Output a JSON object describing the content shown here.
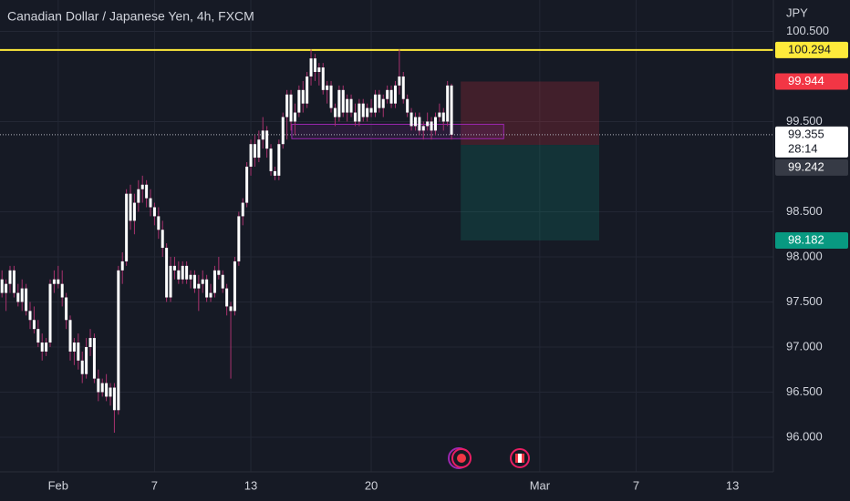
{
  "chart_data": {
    "type": "candlestick",
    "title": "Canadian Dollar / Japanese Yen, 4h, FXCM",
    "currency": "JPY",
    "up_color": "#ffffff",
    "down_color": "#ffffff",
    "wick_color": "#a8326e",
    "grid": true,
    "xlim": [
      -0.5,
      192.2
    ],
    "ylim": [
      95.616,
      100.848
    ],
    "xticks": [
      {
        "value": 14,
        "label": "Feb"
      },
      {
        "value": 38,
        "label": "7"
      },
      {
        "value": 62,
        "label": "13"
      },
      {
        "value": 92,
        "label": "20"
      },
      {
        "value": 134,
        "label": "Mar"
      },
      {
        "value": 158,
        "label": "7"
      },
      {
        "value": 182,
        "label": "13"
      }
    ],
    "yticks": [
      {
        "value": 96,
        "label": "96.000"
      },
      {
        "value": 96.5,
        "label": "96.500"
      },
      {
        "value": 97,
        "label": "97.000"
      },
      {
        "value": 97.5,
        "label": "97.500"
      },
      {
        "value": 98,
        "label": "98.000"
      },
      {
        "value": 98.5,
        "label": "98.500"
      },
      {
        "value": 99.5,
        "label": "99.500"
      },
      {
        "value": 100.5,
        "label": "100.500"
      }
    ],
    "ohlc": [
      [
        97.75,
        97.85,
        97.55,
        97.6
      ],
      [
        97.6,
        97.75,
        97.4,
        97.7
      ],
      [
        97.7,
        97.9,
        97.6,
        97.85
      ],
      [
        97.85,
        97.9,
        97.55,
        97.6
      ],
      [
        97.6,
        97.7,
        97.45,
        97.5
      ],
      [
        97.5,
        97.75,
        97.4,
        97.65
      ],
      [
        97.65,
        97.7,
        97.35,
        97.4
      ],
      [
        97.4,
        97.5,
        97.2,
        97.3
      ],
      [
        97.3,
        97.45,
        97.15,
        97.2
      ],
      [
        97.2,
        97.3,
        97.0,
        97.05
      ],
      [
        97.05,
        97.15,
        96.85,
        96.95
      ],
      [
        96.95,
        97.1,
        96.9,
        97.05
      ],
      [
        97.05,
        97.75,
        97.0,
        97.7
      ],
      [
        97.7,
        97.85,
        97.6,
        97.75
      ],
      [
        97.75,
        97.9,
        97.65,
        97.7
      ],
      [
        97.7,
        97.85,
        97.45,
        97.55
      ],
      [
        97.55,
        97.6,
        97.2,
        97.3
      ],
      [
        97.3,
        97.35,
        96.85,
        96.95
      ],
      [
        96.95,
        97.1,
        96.8,
        97.05
      ],
      [
        97.05,
        97.15,
        96.75,
        96.85
      ],
      [
        96.85,
        96.95,
        96.6,
        96.7
      ],
      [
        96.7,
        97.1,
        96.65,
        97.0
      ],
      [
        97.0,
        97.2,
        96.9,
        97.1
      ],
      [
        97.1,
        97.15,
        96.6,
        96.65
      ],
      [
        96.65,
        96.75,
        96.4,
        96.5
      ],
      [
        96.5,
        96.65,
        96.45,
        96.6
      ],
      [
        96.6,
        96.7,
        96.4,
        96.45
      ],
      [
        96.45,
        96.6,
        96.35,
        96.55
      ],
      [
        96.55,
        96.6,
        96.05,
        96.3
      ],
      [
        96.3,
        97.9,
        96.25,
        97.85
      ],
      [
        97.85,
        98.05,
        97.7,
        97.95
      ],
      [
        97.95,
        98.75,
        97.9,
        98.7
      ],
      [
        98.7,
        98.8,
        98.3,
        98.4
      ],
      [
        98.4,
        98.7,
        98.25,
        98.6
      ],
      [
        98.6,
        98.85,
        98.5,
        98.75
      ],
      [
        98.75,
        98.9,
        98.6,
        98.8
      ],
      [
        98.8,
        98.85,
        98.55,
        98.65
      ],
      [
        98.65,
        98.75,
        98.45,
        98.55
      ],
      [
        98.55,
        98.6,
        98.35,
        98.45
      ],
      [
        98.45,
        98.55,
        98.2,
        98.3
      ],
      [
        98.3,
        98.4,
        98.0,
        98.1
      ],
      [
        98.1,
        98.15,
        97.5,
        97.55
      ],
      [
        97.55,
        98.0,
        97.5,
        97.9
      ],
      [
        97.9,
        98.0,
        97.75,
        97.85
      ],
      [
        97.85,
        97.95,
        97.7,
        97.75
      ],
      [
        97.75,
        97.95,
        97.7,
        97.9
      ],
      [
        97.9,
        97.95,
        97.7,
        97.75
      ],
      [
        97.75,
        97.85,
        97.65,
        97.8
      ],
      [
        97.8,
        97.85,
        97.6,
        97.65
      ],
      [
        97.65,
        97.8,
        97.4,
        97.7
      ],
      [
        97.7,
        97.85,
        97.6,
        97.75
      ],
      [
        97.75,
        97.8,
        97.5,
        97.55
      ],
      [
        97.55,
        97.7,
        97.5,
        97.6
      ],
      [
        97.6,
        97.9,
        97.55,
        97.85
      ],
      [
        97.85,
        98.0,
        97.75,
        97.8
      ],
      [
        97.8,
        97.85,
        97.6,
        97.65
      ],
      [
        97.65,
        97.7,
        97.35,
        97.45
      ],
      [
        97.45,
        97.5,
        96.65,
        97.4
      ],
      [
        97.4,
        98.0,
        97.35,
        97.95
      ],
      [
        97.95,
        98.5,
        97.9,
        98.45
      ],
      [
        98.45,
        98.65,
        98.35,
        98.6
      ],
      [
        98.6,
        99.05,
        98.55,
        99.0
      ],
      [
        99.0,
        99.3,
        98.9,
        99.25
      ],
      [
        99.25,
        99.35,
        99.0,
        99.1
      ],
      [
        99.1,
        99.4,
        99.05,
        99.3
      ],
      [
        99.3,
        99.55,
        99.2,
        99.4
      ],
      [
        99.4,
        99.45,
        99.1,
        99.2
      ],
      [
        99.2,
        99.25,
        98.9,
        98.95
      ],
      [
        98.95,
        99.0,
        98.85,
        98.9
      ],
      [
        98.9,
        99.3,
        98.85,
        99.25
      ],
      [
        99.25,
        99.6,
        99.2,
        99.55
      ],
      [
        99.55,
        99.85,
        99.3,
        99.8
      ],
      [
        99.8,
        99.85,
        99.4,
        99.5
      ],
      [
        99.5,
        99.7,
        99.35,
        99.6
      ],
      [
        99.6,
        99.9,
        99.55,
        99.85
      ],
      [
        99.85,
        99.95,
        99.6,
        99.7
      ],
      [
        99.7,
        100.05,
        99.65,
        100.0
      ],
      [
        100.0,
        100.3,
        99.9,
        100.2
      ],
      [
        100.2,
        100.25,
        99.95,
        100.05
      ],
      [
        100.05,
        100.15,
        99.9,
        100.1
      ],
      [
        100.1,
        100.15,
        99.8,
        99.85
      ],
      [
        99.85,
        99.95,
        99.7,
        99.9
      ],
      [
        99.9,
        99.95,
        99.6,
        99.65
      ],
      [
        99.65,
        99.7,
        99.45,
        99.55
      ],
      [
        99.55,
        99.9,
        99.5,
        99.85
      ],
      [
        99.85,
        99.9,
        99.55,
        99.6
      ],
      [
        99.6,
        99.8,
        99.5,
        99.75
      ],
      [
        99.75,
        99.8,
        99.55,
        99.6
      ],
      [
        99.6,
        99.7,
        99.45,
        99.5
      ],
      [
        99.5,
        99.75,
        99.45,
        99.7
      ],
      [
        99.7,
        99.75,
        99.5,
        99.55
      ],
      [
        99.55,
        99.7,
        99.5,
        99.65
      ],
      [
        99.65,
        99.75,
        99.55,
        99.6
      ],
      [
        99.6,
        99.85,
        99.55,
        99.8
      ],
      [
        99.8,
        99.85,
        99.6,
        99.65
      ],
      [
        99.65,
        99.8,
        99.55,
        99.75
      ],
      [
        99.75,
        99.9,
        99.7,
        99.85
      ],
      [
        99.85,
        99.9,
        99.65,
        99.7
      ],
      [
        99.7,
        99.95,
        99.65,
        99.9
      ],
      [
        99.9,
        100.3,
        99.8,
        100.0
      ],
      [
        100.0,
        100.05,
        99.7,
        99.75
      ],
      [
        99.75,
        99.8,
        99.55,
        99.6
      ],
      [
        99.6,
        99.65,
        99.4,
        99.45
      ],
      [
        99.45,
        99.6,
        99.4,
        99.55
      ],
      [
        99.55,
        99.6,
        99.35,
        99.4
      ],
      [
        99.4,
        99.5,
        99.3,
        99.45
      ],
      [
        99.45,
        99.6,
        99.4,
        99.5
      ],
      [
        99.5,
        99.55,
        99.3,
        99.4
      ],
      [
        99.4,
        99.6,
        99.35,
        99.55
      ],
      [
        99.55,
        99.7,
        99.5,
        99.6
      ],
      [
        99.6,
        99.65,
        99.4,
        99.5
      ],
      [
        99.5,
        99.95,
        99.45,
        99.9
      ],
      [
        99.9,
        99.92,
        99.3,
        99.355
      ]
    ],
    "alert_line": {
      "value": 100.294,
      "color": "#ffeb3b"
    },
    "last_price": {
      "value": 99.355,
      "countdown": "28:14"
    },
    "position": {
      "x": [
        114.3,
        148.8
      ],
      "stop": 99.944,
      "entry": 99.242,
      "target": 98.182,
      "stop_color": "#f23645",
      "target_color": "#089981",
      "entry_color": "#363a45"
    },
    "rectangle": {
      "x": [
        72.2,
        125
      ],
      "y": [
        99.31,
        99.47
      ],
      "color": "#9c27b0"
    }
  }
}
